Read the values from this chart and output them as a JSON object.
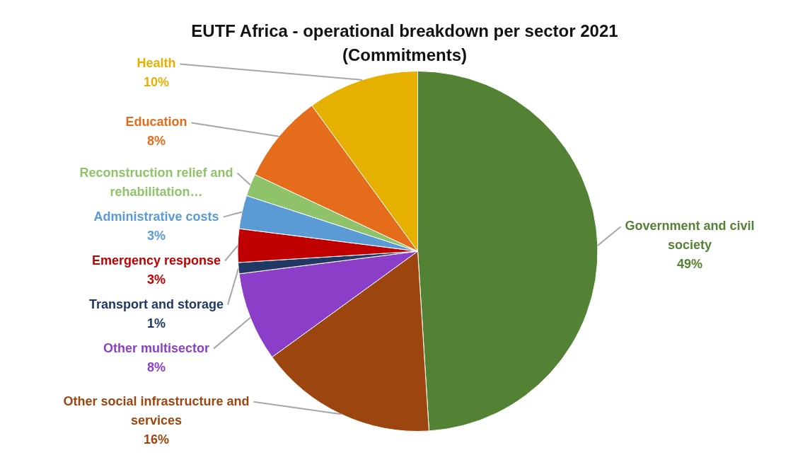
{
  "chart_data": {
    "type": "pie",
    "title": "EUTF Africa - operational breakdown per sector 2021 (Commitments)",
    "categories": [
      "Government and civil society",
      "Other social infrastructure and services",
      "Other multisector",
      "Transport and storage",
      "Emergency response",
      "Administrative costs",
      "Reconstruction relief and rehabilitation…",
      "Education",
      "Health"
    ],
    "values": [
      49,
      16,
      8,
      1,
      3,
      3,
      2,
      8,
      10
    ],
    "value_labels": [
      "49%",
      "16%",
      "8%",
      "1%",
      "3%",
      "3%",
      null,
      "8%",
      "10%"
    ],
    "colors": [
      "#548235",
      "#9c450f",
      "#8b3fc8",
      "#1f3864",
      "#c00000",
      "#5b9bd5",
      "#8fc36a",
      "#e46c1a",
      "#e6b000"
    ],
    "legend": false
  }
}
